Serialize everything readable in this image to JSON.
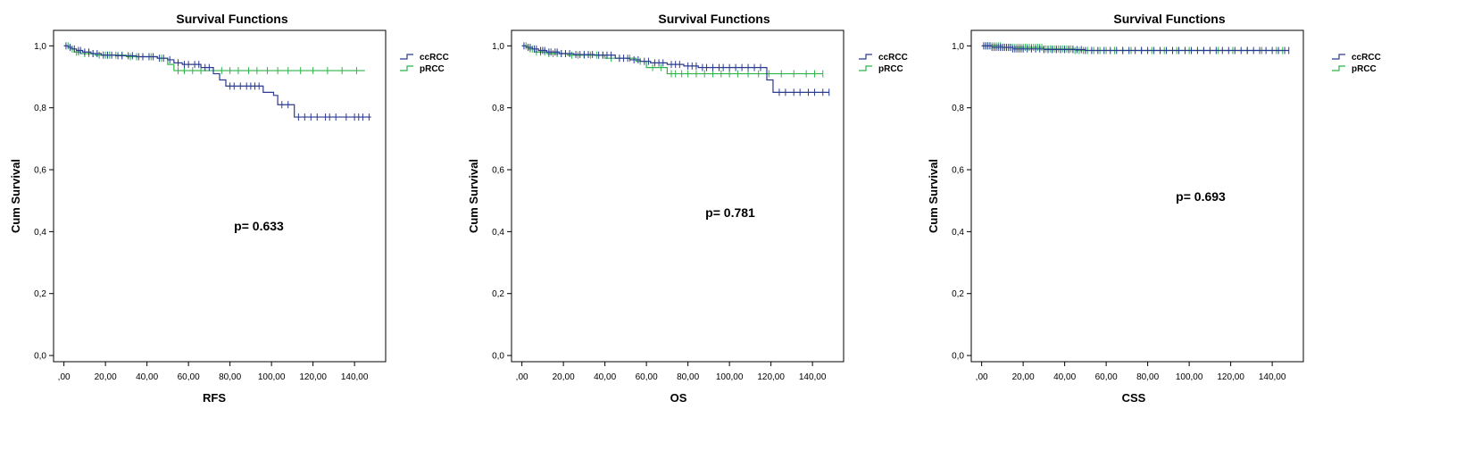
{
  "colors": {
    "ccRCC": "#2b3a8f",
    "pRCC": "#2fb34a",
    "frame": "#000000"
  },
  "chart_data": [
    {
      "type": "line",
      "title": "Survival Functions",
      "xlabel": "RFS",
      "ylabel": "Cum Survival",
      "xlim": [
        -5,
        155
      ],
      "ylim": [
        -0.02,
        1.05
      ],
      "xticks": [
        0,
        20,
        40,
        60,
        80,
        100,
        120,
        140
      ],
      "xtick_labels": [
        ",00",
        "20,00",
        "40,00",
        "60,00",
        "80,00",
        "100,00",
        "120,00",
        "140,00"
      ],
      "yticks": [
        0,
        0.2,
        0.4,
        0.6,
        0.8,
        1.0
      ],
      "ytick_labels": [
        "0,0",
        "0,2",
        "0,4",
        "0,6",
        "0,8",
        "1,0"
      ],
      "annotation": "p= 0.633",
      "legend": [
        "ccRCC",
        "pRCC"
      ],
      "series": [
        {
          "name": "ccRCC",
          "steps": [
            [
              0,
              1.0
            ],
            [
              2,
              0.995
            ],
            [
              4,
              0.99
            ],
            [
              6,
              0.985
            ],
            [
              9,
              0.98
            ],
            [
              13,
              0.975
            ],
            [
              18,
              0.97
            ],
            [
              25,
              0.968
            ],
            [
              35,
              0.965
            ],
            [
              45,
              0.96
            ],
            [
              50,
              0.955
            ],
            [
              53,
              0.945
            ],
            [
              57,
              0.94
            ],
            [
              66,
              0.93
            ],
            [
              72,
              0.91
            ],
            [
              75,
              0.89
            ],
            [
              78,
              0.87
            ],
            [
              96,
              0.85
            ],
            [
              101,
              0.84
            ],
            [
              103,
              0.81
            ],
            [
              111,
              0.77
            ],
            [
              148,
              0.77
            ]
          ],
          "censors": [
            1,
            3,
            5,
            7,
            8,
            10,
            12,
            14,
            16,
            19,
            21,
            23,
            26,
            28,
            31,
            33,
            36,
            38,
            41,
            43,
            46,
            48,
            51,
            55,
            58,
            60,
            63,
            65,
            68,
            70,
            80,
            82,
            85,
            88,
            90,
            92,
            94,
            105,
            108,
            113,
            116,
            119,
            122,
            126,
            128,
            131,
            136,
            140,
            142,
            144,
            147
          ]
        },
        {
          "name": "pRCC",
          "steps": [
            [
              0,
              1.0
            ],
            [
              3,
              0.99
            ],
            [
              5,
              0.98
            ],
            [
              8,
              0.975
            ],
            [
              15,
              0.97
            ],
            [
              30,
              0.965
            ],
            [
              45,
              0.96
            ],
            [
              50,
              0.94
            ],
            [
              53,
              0.92
            ],
            [
              145,
              0.92
            ]
          ],
          "censors": [
            2,
            4,
            6,
            7,
            10,
            12,
            14,
            17,
            20,
            22,
            25,
            28,
            32,
            35,
            38,
            42,
            47,
            55,
            58,
            62,
            66,
            72,
            76,
            80,
            84,
            89,
            93,
            98,
            103,
            108,
            114,
            120,
            127,
            134,
            141
          ]
        }
      ]
    },
    {
      "type": "line",
      "title": "Survival Functions",
      "xlabel": "OS",
      "ylabel": "Cum Survival",
      "xlim": [
        -5,
        155
      ],
      "ylim": [
        -0.02,
        1.05
      ],
      "xticks": [
        0,
        20,
        40,
        60,
        80,
        100,
        120,
        140
      ],
      "xtick_labels": [
        ",00",
        "20,00",
        "40,00",
        "60,00",
        "80,00",
        "100,00",
        "120,00",
        "140,00"
      ],
      "yticks": [
        0,
        0.2,
        0.4,
        0.6,
        0.8,
        1.0
      ],
      "ytick_labels": [
        "0,0",
        "0,2",
        "0,4",
        "0,6",
        "0,8",
        "1,0"
      ],
      "annotation": "p= 0.781",
      "legend": [
        "ccRCC",
        "pRCC"
      ],
      "series": [
        {
          "name": "ccRCC",
          "steps": [
            [
              0,
              1.0
            ],
            [
              2,
              0.995
            ],
            [
              5,
              0.99
            ],
            [
              8,
              0.985
            ],
            [
              12,
              0.98
            ],
            [
              18,
              0.975
            ],
            [
              25,
              0.972
            ],
            [
              35,
              0.97
            ],
            [
              45,
              0.96
            ],
            [
              52,
              0.955
            ],
            [
              57,
              0.95
            ],
            [
              62,
              0.945
            ],
            [
              70,
              0.94
            ],
            [
              78,
              0.935
            ],
            [
              85,
              0.93
            ],
            [
              118,
              0.89
            ],
            [
              121,
              0.85
            ],
            [
              148,
              0.85
            ]
          ],
          "censors": [
            1,
            3,
            4,
            6,
            7,
            9,
            10,
            11,
            13,
            14,
            16,
            17,
            19,
            21,
            23,
            26,
            28,
            30,
            32,
            34,
            37,
            39,
            41,
            43,
            47,
            49,
            51,
            54,
            56,
            59,
            61,
            64,
            66,
            68,
            72,
            74,
            76,
            80,
            82,
            84,
            87,
            89,
            92,
            95,
            97,
            100,
            103,
            106,
            109,
            112,
            115,
            124,
            127,
            131,
            134,
            138,
            141,
            145,
            148
          ]
        },
        {
          "name": "pRCC",
          "steps": [
            [
              0,
              1.0
            ],
            [
              3,
              0.99
            ],
            [
              6,
              0.98
            ],
            [
              12,
              0.975
            ],
            [
              22,
              0.97
            ],
            [
              40,
              0.96
            ],
            [
              55,
              0.95
            ],
            [
              60,
              0.93
            ],
            [
              70,
              0.91
            ],
            [
              145,
              0.91
            ]
          ],
          "censors": [
            2,
            4,
            5,
            7,
            9,
            11,
            13,
            15,
            17,
            19,
            21,
            24,
            27,
            30,
            33,
            36,
            39,
            43,
            47,
            52,
            57,
            63,
            67,
            72,
            74,
            77,
            80,
            84,
            88,
            92,
            96,
            100,
            104,
            109,
            114,
            119,
            125,
            131,
            137,
            141,
            145
          ]
        }
      ]
    },
    {
      "type": "line",
      "title": "Survival Functions",
      "xlabel": "CSS",
      "ylabel": "Cum Survival",
      "xlim": [
        -5,
        155
      ],
      "ylim": [
        -0.02,
        1.05
      ],
      "xticks": [
        0,
        20,
        40,
        60,
        80,
        100,
        120,
        140
      ],
      "xtick_labels": [
        ",00",
        "20,00",
        "40,00",
        "60,00",
        "80,00",
        "100,00",
        "120,00",
        "140,00"
      ],
      "yticks": [
        0,
        0.2,
        0.4,
        0.6,
        0.8,
        1.0
      ],
      "ytick_labels": [
        "0,0",
        "0,2",
        "0,4",
        "0,6",
        "0,8",
        "1,0"
      ],
      "annotation": "p= 0.693",
      "legend": [
        "ccRCC",
        "pRCC"
      ],
      "series": [
        {
          "name": "ccRCC",
          "steps": [
            [
              0,
              1.0
            ],
            [
              5,
              0.995
            ],
            [
              15,
              0.99
            ],
            [
              30,
              0.988
            ],
            [
              50,
              0.985
            ],
            [
              148,
              0.985
            ]
          ],
          "censors": [
            1,
            2,
            3,
            4,
            5,
            6,
            7,
            8,
            9,
            10,
            11,
            12,
            13,
            14,
            15,
            16,
            17,
            18,
            19,
            20,
            22,
            24,
            26,
            28,
            30,
            32,
            34,
            36,
            38,
            40,
            42,
            44,
            46,
            48,
            50,
            53,
            56,
            59,
            62,
            65,
            68,
            71,
            74,
            77,
            80,
            83,
            86,
            89,
            92,
            95,
            98,
            101,
            104,
            107,
            110,
            113,
            116,
            119,
            122,
            125,
            128,
            131,
            134,
            137,
            140,
            143,
            146,
            148
          ]
        },
        {
          "name": "pRCC",
          "steps": [
            [
              0,
              1.0
            ],
            [
              10,
              0.995
            ],
            [
              30,
              0.99
            ],
            [
              45,
              0.985
            ],
            [
              145,
              0.985
            ]
          ],
          "censors": [
            1,
            2,
            3,
            4,
            5,
            6,
            7,
            8,
            9,
            10,
            11,
            12,
            13,
            14,
            15,
            16,
            17,
            18,
            19,
            20,
            21,
            22,
            23,
            24,
            25,
            26,
            27,
            28,
            29,
            30,
            31,
            32,
            33,
            34,
            35,
            36,
            37,
            38,
            39,
            40,
            41,
            42,
            43,
            44,
            45,
            47,
            49,
            51,
            54,
            57,
            60,
            64,
            68,
            72,
            77,
            82,
            88,
            94,
            100,
            107,
            114,
            121,
            128,
            135,
            142,
            145
          ]
        }
      ]
    }
  ]
}
